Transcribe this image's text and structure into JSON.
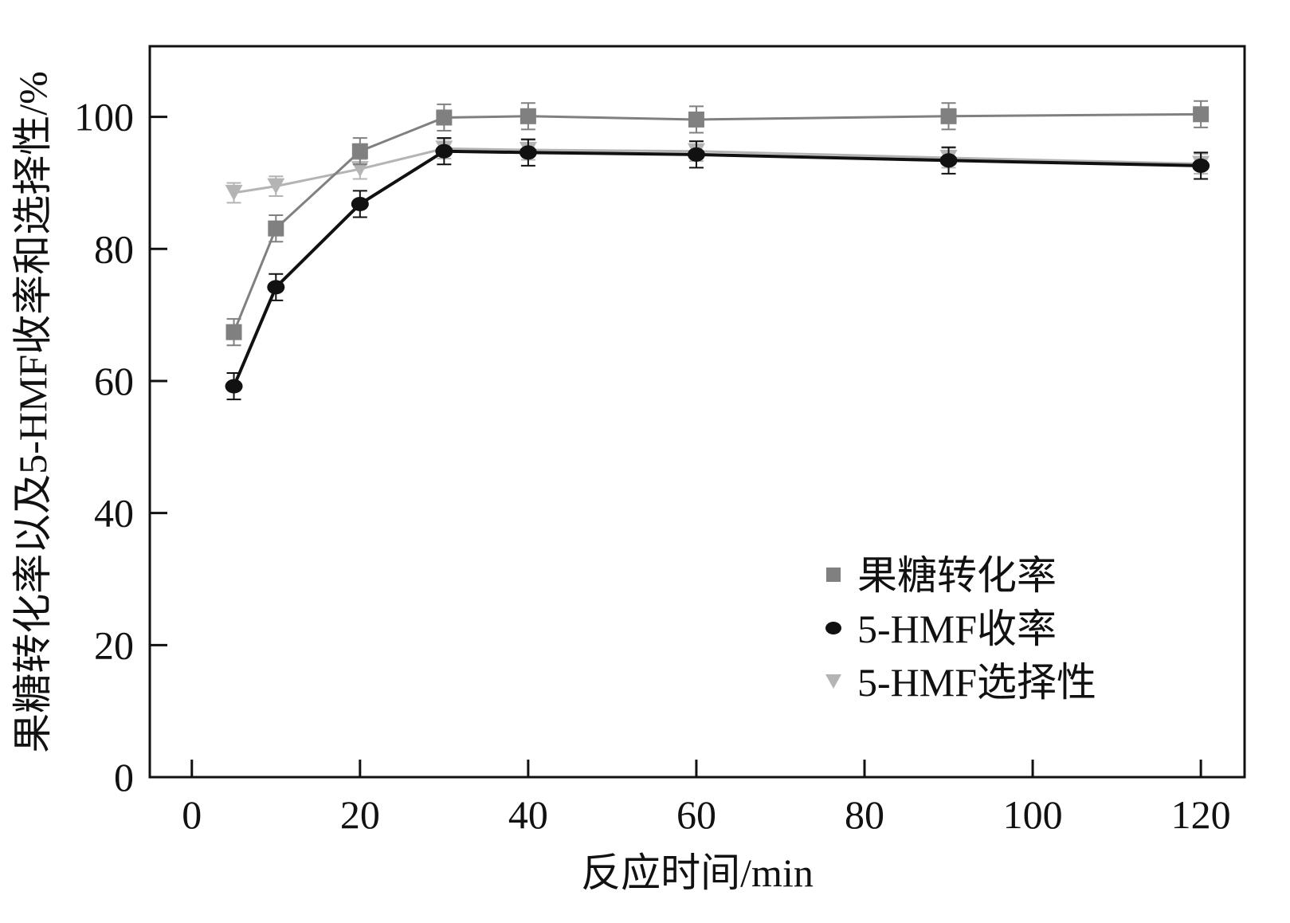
{
  "chart_data": {
    "type": "line",
    "title": "",
    "xlabel": "反应时间/min",
    "ylabel": "果糖转化率以及5-HMF收率和选择性/%",
    "xlim": [
      -5,
      125.2
    ],
    "ylim": [
      0,
      110.7
    ],
    "xticks": [
      0,
      20,
      40,
      60,
      80,
      100,
      120
    ],
    "yticks": [
      0,
      20,
      40,
      60,
      80,
      100
    ],
    "x": [
      5,
      10,
      20,
      30,
      40,
      60,
      90,
      120
    ],
    "legend_position": "bottom-right",
    "series": [
      {
        "name": "果糖转化率",
        "marker": "square",
        "color": "#808080",
        "values": [
          67.4,
          83.1,
          94.8,
          99.9,
          100.1,
          99.6,
          100.1,
          100.4
        ],
        "error": [
          2,
          2,
          2,
          2,
          2,
          2,
          2,
          2
        ]
      },
      {
        "name": "5-HMF收率",
        "marker": "circle",
        "color": "#111111",
        "values": [
          59.2,
          74.2,
          86.8,
          94.8,
          94.6,
          94.3,
          93.4,
          92.6
        ],
        "error": [
          2,
          2,
          2,
          2,
          2,
          2,
          2,
          2
        ]
      },
      {
        "name": "5-HMF选择性",
        "marker": "triangle-down",
        "color": "#b4b4b4",
        "values": [
          88.5,
          89.5,
          92.1,
          95.2,
          95.0,
          94.8,
          93.8,
          92.9
        ],
        "error": [
          1.5,
          1.5,
          1.5,
          1.5,
          1.5,
          1.5,
          1.5,
          1.5
        ]
      }
    ]
  }
}
